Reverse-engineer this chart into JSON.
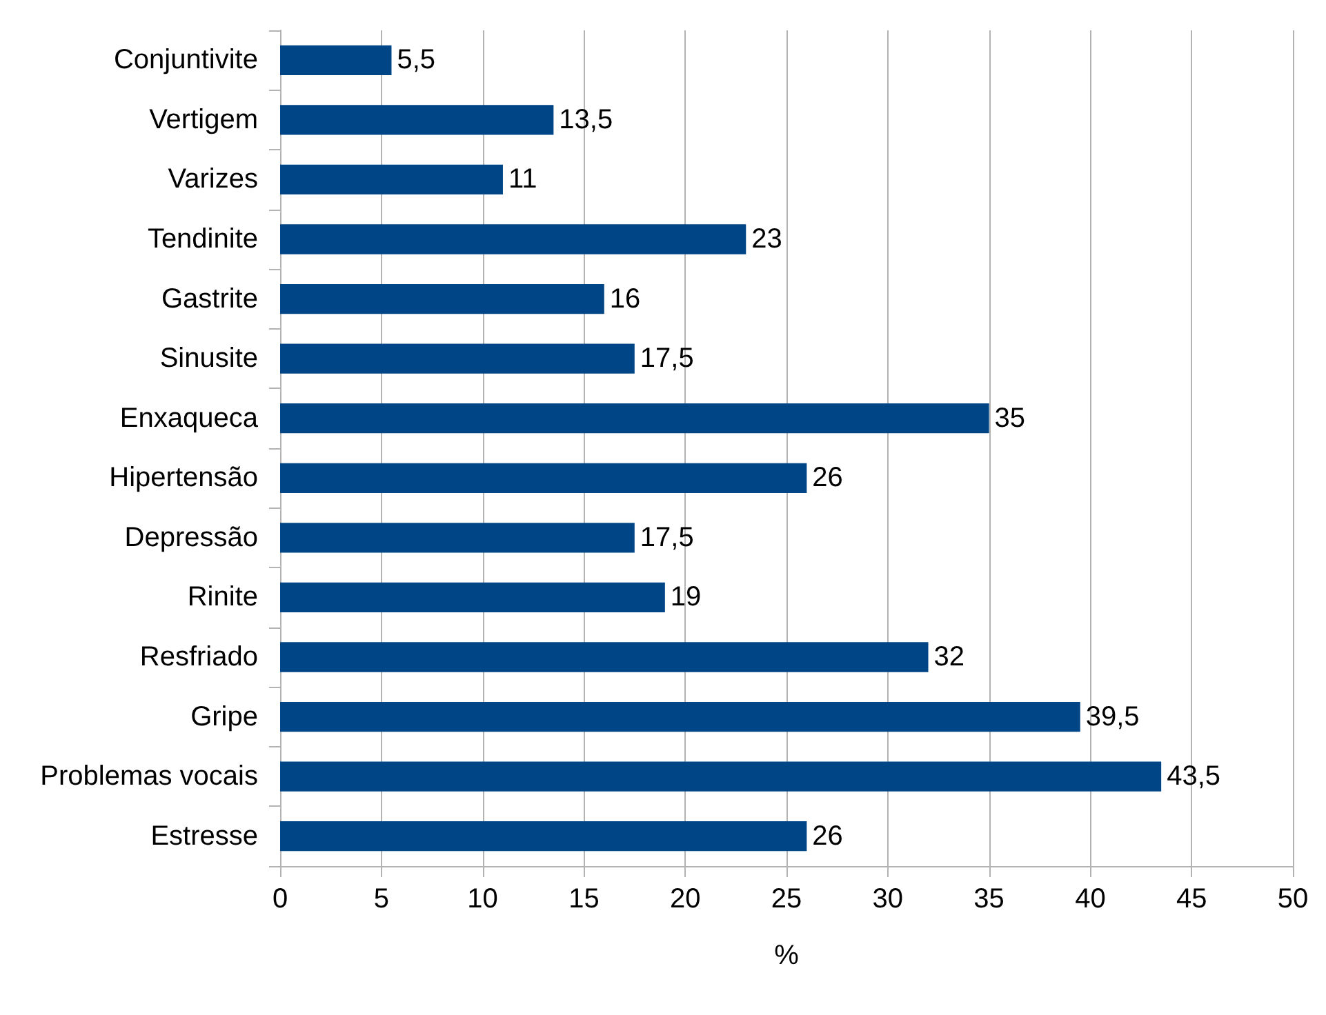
{
  "chart_data": {
    "type": "bar",
    "orientation": "horizontal",
    "xlabel": "%",
    "categories": [
      "Conjuntivite",
      "Vertigem",
      "Varizes",
      "Tendinite",
      "Gastrite",
      "Sinusite",
      "Enxaqueca",
      "Hipertensão",
      "Depressão",
      "Rinite",
      "Resfriado",
      "Gripe",
      "Problemas vocais",
      "Estresse"
    ],
    "values": [
      5.5,
      13.5,
      11,
      23,
      16,
      17.5,
      35,
      26,
      17.5,
      19,
      32,
      39.5,
      43.5,
      26
    ],
    "value_labels": [
      "5,5",
      "13,5",
      "11",
      "23",
      "16",
      "17,5",
      "35",
      "26",
      "17,5",
      "19",
      "32",
      "39,5",
      "43,5",
      "26"
    ],
    "color": "#004586",
    "xlim": [
      0,
      50
    ],
    "xticks": [
      0,
      5,
      10,
      15,
      20,
      25,
      30,
      35,
      40,
      45,
      50
    ],
    "grid": "x"
  }
}
